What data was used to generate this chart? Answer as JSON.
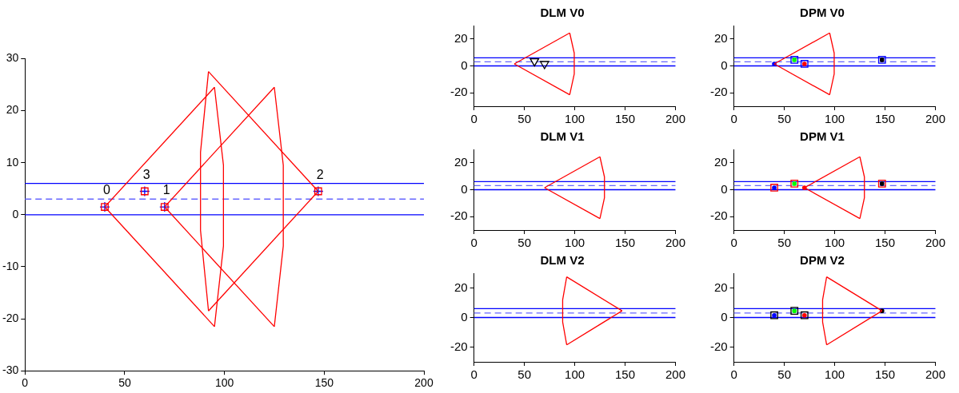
{
  "chart_data": [
    {
      "type": "line",
      "xlim": [
        0,
        200
      ],
      "ylim": [
        -30,
        30
      ],
      "xticks": [
        0,
        50,
        100,
        150,
        200
      ],
      "yticks": [
        -30,
        -20,
        -10,
        0,
        10,
        20,
        30
      ],
      "grid": false,
      "legend": false,
      "ref_lines": [
        {
          "axis": "y",
          "value": 6,
          "color": "#0000ff",
          "line_style": "solid"
        },
        {
          "axis": "y",
          "value": 3,
          "color": "#6666ff",
          "line_style": "dashed"
        },
        {
          "axis": "y",
          "value": 0,
          "color": "#0000ff",
          "line_style": "solid"
        }
      ],
      "series": [
        {
          "type": "line",
          "color": "#ff0000",
          "marker": "none",
          "x": [
            40,
            95
          ],
          "values": [
            1.5,
            24.5
          ]
        },
        {
          "type": "line",
          "color": "#ff0000",
          "marker": "none",
          "x": [
            95,
            99.5,
            99.5,
            95
          ],
          "values": [
            24.5,
            9.5,
            -6,
            -21.5
          ]
        },
        {
          "type": "line",
          "color": "#ff0000",
          "marker": "none",
          "x": [
            40,
            95
          ],
          "values": [
            1.5,
            -21.5
          ]
        },
        {
          "type": "line",
          "color": "#ff0000",
          "marker": "none",
          "x": [
            70,
            125
          ],
          "values": [
            1.5,
            24.5
          ]
        },
        {
          "type": "line",
          "color": "#ff0000",
          "marker": "none",
          "x": [
            125,
            129.5,
            129.5,
            125
          ],
          "values": [
            24.5,
            9.5,
            -6,
            -21.5
          ]
        },
        {
          "type": "line",
          "color": "#ff0000",
          "marker": "none",
          "x": [
            70,
            125
          ],
          "values": [
            1.5,
            -21.5
          ]
        },
        {
          "type": "line",
          "color": "#ff0000",
          "marker": "none",
          "x": [
            92,
            147
          ],
          "values": [
            27.5,
            4.5
          ]
        },
        {
          "type": "line",
          "color": "#ff0000",
          "marker": "none",
          "x": [
            92,
            88,
            88,
            92
          ],
          "values": [
            27.5,
            12,
            -3,
            -18.5
          ]
        },
        {
          "type": "line",
          "color": "#ff0000",
          "marker": "none",
          "x": [
            92,
            147
          ],
          "values": [
            -18.5,
            4.5
          ]
        },
        {
          "type": "scatter",
          "color": "#ff0000",
          "marker": "square",
          "x": [
            40,
            70,
            147,
            60
          ],
          "values": [
            1.5,
            1.5,
            4.5,
            4.5
          ]
        },
        {
          "type": "scatter",
          "color": "#0000ff",
          "marker": "cross",
          "x": [
            40,
            70,
            147,
            60
          ],
          "values": [
            1.5,
            1.5,
            4.5,
            4.5
          ]
        }
      ],
      "annotations": [
        {
          "text": "0",
          "x": 40,
          "y": 1.5
        },
        {
          "text": "1",
          "x": 70,
          "y": 1.5
        },
        {
          "text": "2",
          "x": 147,
          "y": 4.5
        },
        {
          "text": "3",
          "x": 60,
          "y": 4.5
        }
      ]
    },
    {
      "type": "line",
      "title": "DLM V0",
      "xlim": [
        0,
        200
      ],
      "ylim": [
        -30,
        30
      ],
      "xticks": [
        0,
        50,
        100,
        150,
        200
      ],
      "yticks": [
        -20,
        0,
        20
      ],
      "grid": false,
      "legend": false,
      "ref_lines": [
        {
          "axis": "y",
          "value": 6,
          "color": "#0000ff",
          "line_style": "solid"
        },
        {
          "axis": "y",
          "value": 3,
          "color": "#6666ff",
          "line_style": "dashed"
        },
        {
          "axis": "y",
          "value": 0,
          "color": "#0000ff",
          "line_style": "solid"
        }
      ],
      "series": [
        {
          "type": "line",
          "color": "#ff0000",
          "marker": "none",
          "x": [
            40,
            95
          ],
          "values": [
            1.5,
            24.5
          ]
        },
        {
          "type": "line",
          "color": "#ff0000",
          "marker": "none",
          "x": [
            95,
            99.5,
            99.5,
            95
          ],
          "values": [
            24.5,
            9.5,
            -6,
            -21.5
          ]
        },
        {
          "type": "line",
          "color": "#ff0000",
          "marker": "none",
          "x": [
            40,
            95
          ],
          "values": [
            1.5,
            -21.5
          ]
        },
        {
          "type": "scatter",
          "color": "#000000",
          "marker": "triangle",
          "x": [
            60,
            70
          ],
          "values": [
            3.5,
            1.5
          ]
        }
      ]
    },
    {
      "type": "line",
      "title": "DPM V0",
      "xlim": [
        0,
        200
      ],
      "ylim": [
        -30,
        30
      ],
      "xticks": [
        0,
        50,
        100,
        150,
        200
      ],
      "yticks": [
        -20,
        0,
        20
      ],
      "grid": false,
      "legend": false,
      "ref_lines": [
        {
          "axis": "y",
          "value": 6,
          "color": "#0000ff",
          "line_style": "solid"
        },
        {
          "axis": "y",
          "value": 3,
          "color": "#6666ff",
          "line_style": "dashed"
        },
        {
          "axis": "y",
          "value": 0,
          "color": "#0000ff",
          "line_style": "solid"
        }
      ],
      "series": [
        {
          "type": "line",
          "color": "#ff0000",
          "marker": "none",
          "x": [
            40,
            95
          ],
          "values": [
            1.5,
            24.5
          ]
        },
        {
          "type": "line",
          "color": "#ff0000",
          "marker": "none",
          "x": [
            95,
            99.5,
            99.5,
            95
          ],
          "values": [
            24.5,
            9.5,
            -6,
            -21.5
          ]
        },
        {
          "type": "line",
          "color": "#ff0000",
          "marker": "none",
          "x": [
            40,
            95
          ],
          "values": [
            1.5,
            -21.5
          ]
        },
        {
          "type": "scatter",
          "color": "#0000ff",
          "marker": "square",
          "x": [
            60,
            70,
            147
          ],
          "values": [
            4.5,
            1.5,
            4.5
          ]
        },
        {
          "type": "scatter",
          "colors": [
            "#0000ff",
            "#00ff00",
            "#ff0000",
            "#000000"
          ],
          "marker": "circle",
          "x": [
            40,
            60,
            70,
            147
          ],
          "values": [
            1.5,
            4.5,
            1.5,
            4.5
          ]
        }
      ]
    },
    {
      "type": "line",
      "title": "DLM V1",
      "xlim": [
        0,
        200
      ],
      "ylim": [
        -30,
        30
      ],
      "xticks": [
        0,
        50,
        100,
        150,
        200
      ],
      "yticks": [
        -20,
        0,
        20
      ],
      "grid": false,
      "legend": false,
      "ref_lines": [
        {
          "axis": "y",
          "value": 6,
          "color": "#0000ff",
          "line_style": "solid"
        },
        {
          "axis": "y",
          "value": 3,
          "color": "#6666ff",
          "line_style": "dashed"
        },
        {
          "axis": "y",
          "value": 0,
          "color": "#0000ff",
          "line_style": "solid"
        }
      ],
      "series": [
        {
          "type": "line",
          "color": "#ff0000",
          "marker": "none",
          "x": [
            70,
            125
          ],
          "values": [
            1.5,
            24.5
          ]
        },
        {
          "type": "line",
          "color": "#ff0000",
          "marker": "none",
          "x": [
            125,
            129.5,
            129.5,
            125
          ],
          "values": [
            24.5,
            9.5,
            -6,
            -21.5
          ]
        },
        {
          "type": "line",
          "color": "#ff0000",
          "marker": "none",
          "x": [
            70,
            125
          ],
          "values": [
            1.5,
            -21.5
          ]
        }
      ]
    },
    {
      "type": "line",
      "title": "DPM V1",
      "xlim": [
        0,
        200
      ],
      "ylim": [
        -30,
        30
      ],
      "xticks": [
        0,
        50,
        100,
        150,
        200
      ],
      "yticks": [
        -20,
        0,
        20
      ],
      "grid": false,
      "legend": false,
      "ref_lines": [
        {
          "axis": "y",
          "value": 6,
          "color": "#0000ff",
          "line_style": "solid"
        },
        {
          "axis": "y",
          "value": 3,
          "color": "#6666ff",
          "line_style": "dashed"
        },
        {
          "axis": "y",
          "value": 0,
          "color": "#0000ff",
          "line_style": "solid"
        }
      ],
      "series": [
        {
          "type": "line",
          "color": "#ff0000",
          "marker": "none",
          "x": [
            70,
            125
          ],
          "values": [
            1.5,
            24.5
          ]
        },
        {
          "type": "line",
          "color": "#ff0000",
          "marker": "none",
          "x": [
            125,
            129.5,
            129.5,
            125
          ],
          "values": [
            24.5,
            9.5,
            -6,
            -21.5
          ]
        },
        {
          "type": "line",
          "color": "#ff0000",
          "marker": "none",
          "x": [
            70,
            125
          ],
          "values": [
            1.5,
            -21.5
          ]
        },
        {
          "type": "scatter",
          "color": "#ff0000",
          "marker": "square",
          "x": [
            40,
            60,
            147
          ],
          "values": [
            1.5,
            4.5,
            4.5
          ]
        },
        {
          "type": "scatter",
          "colors": [
            "#0000ff",
            "#00ff00",
            "#ff0000",
            "#000000"
          ],
          "marker": "circle",
          "x": [
            40,
            60,
            70,
            147
          ],
          "values": [
            1.5,
            4.5,
            1.5,
            4.5
          ]
        }
      ]
    },
    {
      "type": "line",
      "title": "DLM V2",
      "xlim": [
        0,
        200
      ],
      "ylim": [
        -30,
        30
      ],
      "xticks": [
        0,
        50,
        100,
        150,
        200
      ],
      "yticks": [
        -20,
        0,
        20
      ],
      "grid": false,
      "legend": false,
      "ref_lines": [
        {
          "axis": "y",
          "value": 6,
          "color": "#0000ff",
          "line_style": "solid"
        },
        {
          "axis": "y",
          "value": 3,
          "color": "#6666ff",
          "line_style": "dashed"
        },
        {
          "axis": "y",
          "value": 0,
          "color": "#0000ff",
          "line_style": "solid"
        }
      ],
      "series": [
        {
          "type": "line",
          "color": "#ff0000",
          "marker": "none",
          "x": [
            92,
            147
          ],
          "values": [
            27.5,
            4.5
          ]
        },
        {
          "type": "line",
          "color": "#ff0000",
          "marker": "none",
          "x": [
            92,
            88,
            88,
            92
          ],
          "values": [
            27.5,
            12,
            -3,
            -18.5
          ]
        },
        {
          "type": "line",
          "color": "#ff0000",
          "marker": "none",
          "x": [
            92,
            147
          ],
          "values": [
            -18.5,
            4.5
          ]
        }
      ]
    },
    {
      "type": "line",
      "title": "DPM V2",
      "xlim": [
        0,
        200
      ],
      "ylim": [
        -30,
        30
      ],
      "xticks": [
        0,
        50,
        100,
        150,
        200
      ],
      "yticks": [
        -20,
        0,
        20
      ],
      "grid": false,
      "legend": false,
      "ref_lines": [
        {
          "axis": "y",
          "value": 6,
          "color": "#0000ff",
          "line_style": "solid"
        },
        {
          "axis": "y",
          "value": 3,
          "color": "#6666ff",
          "line_style": "dashed"
        },
        {
          "axis": "y",
          "value": 0,
          "color": "#0000ff",
          "line_style": "solid"
        }
      ],
      "series": [
        {
          "type": "line",
          "color": "#ff0000",
          "marker": "none",
          "x": [
            92,
            147
          ],
          "values": [
            27.5,
            4.5
          ]
        },
        {
          "type": "line",
          "color": "#ff0000",
          "marker": "none",
          "x": [
            92,
            88,
            88,
            92
          ],
          "values": [
            27.5,
            12,
            -3,
            -18.5
          ]
        },
        {
          "type": "line",
          "color": "#ff0000",
          "marker": "none",
          "x": [
            92,
            147
          ],
          "values": [
            -18.5,
            4.5
          ]
        },
        {
          "type": "scatter",
          "color": "#000000",
          "marker": "square",
          "x": [
            40,
            60,
            70
          ],
          "values": [
            1.5,
            4.5,
            1.5
          ]
        },
        {
          "type": "scatter",
          "colors": [
            "#0000ff",
            "#00ff00",
            "#ff0000",
            "#000000"
          ],
          "marker": "circle",
          "x": [
            40,
            60,
            70,
            147
          ],
          "values": [
            1.5,
            4.5,
            1.5,
            4.5
          ]
        }
      ]
    }
  ]
}
